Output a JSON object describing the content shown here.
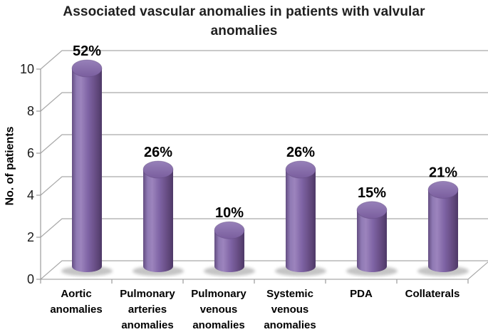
{
  "chart_data": {
    "type": "bar",
    "subtype": "3d-cylinder",
    "title": "Associated vascular anomalies in patients with valvular anomalies",
    "title_lines": [
      "Associated vascular anomalies in patients with valvular",
      "anomalies"
    ],
    "categories": [
      "Aortic anomalies",
      "Pulmonary arteries anomalies",
      "Pulmonary venous anomalies",
      "Systemic venous anomalies",
      "PDA",
      "Collaterals"
    ],
    "values": [
      10,
      5,
      2,
      5,
      3,
      4
    ],
    "data_labels": [
      "52%",
      "26%",
      "10%",
      "26%",
      "15%",
      "21%"
    ],
    "xlabel": "",
    "ylabel": "No. of patients",
    "yticks": [
      0,
      2,
      4,
      6,
      8,
      10
    ],
    "ylim": [
      0,
      10
    ],
    "grid": true,
    "legend": "none",
    "colors": {
      "bar": "#8064A2",
      "bar_highlight": "#9C84BD",
      "bar_dark": "#4E3967",
      "bar_top": "#8A6FA9",
      "grid": "#A9A9A9",
      "axis": "#9B9B9B",
      "text": "#1A1A1A",
      "title": "#1F1F1F",
      "shadow": "#8A8A8A",
      "background": "#FFFFFF"
    }
  }
}
